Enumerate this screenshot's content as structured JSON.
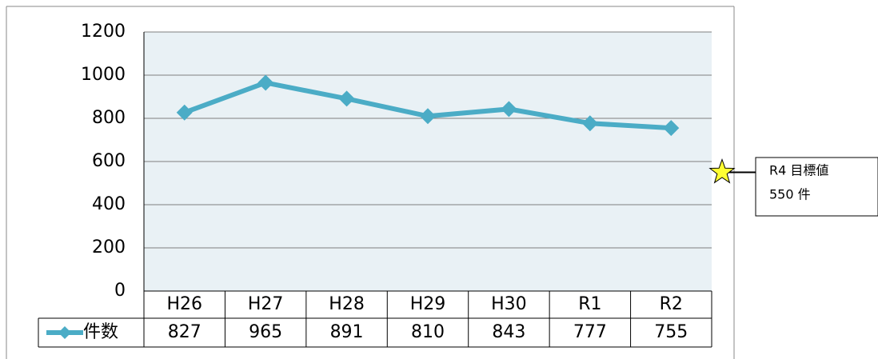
{
  "chart_data": {
    "type": "line",
    "categories": [
      "H26",
      "H27",
      "H28",
      "H29",
      "H30",
      "R1",
      "R2"
    ],
    "series": [
      {
        "name": "件数",
        "color": "#4bacc6",
        "values": [
          827,
          965,
          891,
          810,
          843,
          777,
          755
        ]
      }
    ],
    "ylim": [
      0,
      1200
    ],
    "yticks": [
      0,
      200,
      400,
      600,
      800,
      1000,
      1200
    ],
    "grid": true,
    "target": {
      "name": "R4 目標値",
      "value": 550,
      "value_label": "550 件",
      "color": "#ffff33"
    }
  }
}
